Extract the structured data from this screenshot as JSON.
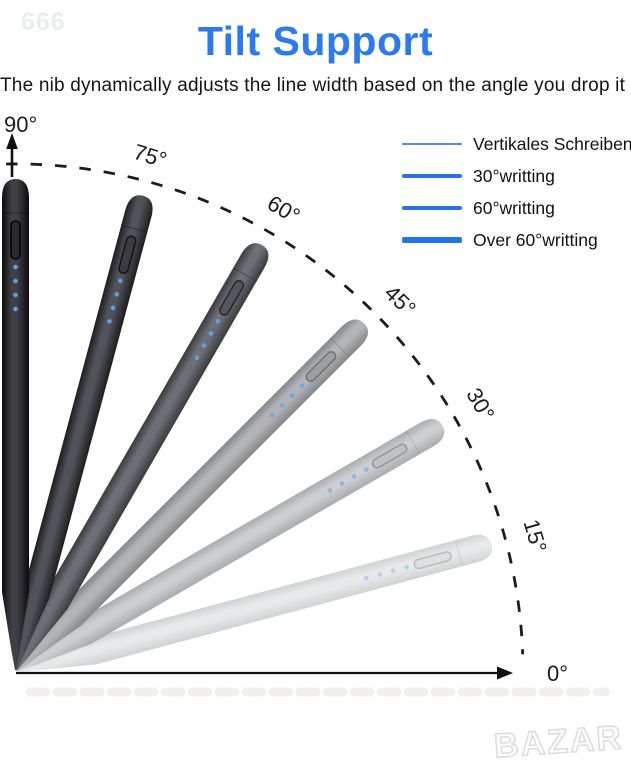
{
  "meta": {
    "watermark_id": "666",
    "store_watermark": "BAZAR"
  },
  "header": {
    "title": "Tilt Support",
    "subtitle": "The nib dynamically adjusts the line width based on the angle you drop it"
  },
  "legend": {
    "position": "top-right",
    "line_color": "#2472e8",
    "items": [
      {
        "label": "Vertikales Schreiben",
        "line_weight": "thin"
      },
      {
        "label": "30°writting",
        "line_weight": "medium"
      },
      {
        "label": "60°writting",
        "line_weight": "thick"
      },
      {
        "label": "Over 60°writting",
        "line_weight": "extra-thick"
      }
    ]
  },
  "diagram": {
    "type": "stylus-tilt-angle-fan",
    "arc_style": "dashed",
    "axis_color": "#1c1c1c",
    "angle_labels": {
      "a90": "90°",
      "a75": "75°",
      "a60": "60°",
      "a45": "45°",
      "a30": "30°",
      "a15": "15°",
      "a0": "0°"
    },
    "pens": [
      {
        "angle_deg": 90,
        "rotation_deg": 0,
        "edge": "#0c0c0e",
        "center": "#3f3f46",
        "btn_fill": "#2a2a30",
        "btn_stroke": "#000000",
        "led": "#58a2ec"
      },
      {
        "angle_deg": 75,
        "rotation_deg": 15,
        "edge": "#1d1d21",
        "center": "#52525a",
        "btn_fill": "#3c3c42",
        "btn_stroke": "#111114",
        "led": "#58a2ec"
      },
      {
        "angle_deg": 60,
        "rotation_deg": 30,
        "edge": "#3a3a40",
        "center": "#6e6e76",
        "btn_fill": "#55555c",
        "btn_stroke": "#26262b",
        "led": "#58a2ec"
      },
      {
        "angle_deg": 45,
        "rotation_deg": 45,
        "edge": "#85878a",
        "center": "#b2b4b8",
        "btn_fill": "#9c9ea2",
        "btn_stroke": "#6f7174",
        "led": "#6ea6e6"
      },
      {
        "angle_deg": 30,
        "rotation_deg": 60,
        "edge": "#a9abae",
        "center": "#ccced1",
        "btn_fill": "#bfc1c4",
        "btn_stroke": "#939598",
        "led": "#8fb6e8"
      },
      {
        "angle_deg": 15,
        "rotation_deg": 75,
        "edge": "#cfd1d3",
        "center": "#e8e9eb",
        "btn_fill": "#dddfe1",
        "btn_stroke": "#b9bbbd",
        "led": "#b8cfec"
      }
    ]
  },
  "colors": {
    "title_blue": "#2b7af0",
    "legend_line_blue": "#2472e8",
    "led_blue": "#58a2ec"
  }
}
